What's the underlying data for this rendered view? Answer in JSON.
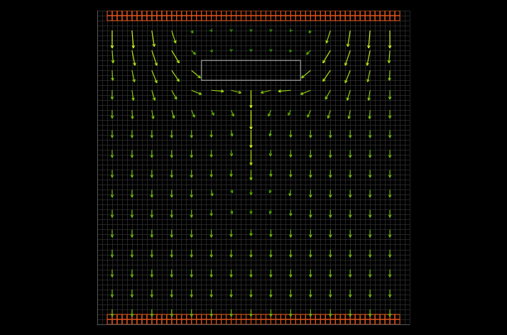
{
  "chart_data": {
    "type": "quiver",
    "tick_labels": false,
    "grid": true,
    "xlim": [
      0,
      63
    ],
    "ylim": [
      0,
      63
    ],
    "obstacle": {
      "x": [
        21,
        41
      ],
      "y": [
        49,
        53
      ]
    },
    "x": [
      3,
      7,
      11,
      15,
      19,
      23,
      27,
      31,
      35,
      39,
      43,
      47,
      51,
      55,
      59
    ],
    "y": [
      59,
      55,
      51,
      47,
      43,
      39,
      35,
      31,
      27,
      23,
      19,
      15,
      11,
      7,
      3
    ],
    "u": [
      [
        0,
        0.3,
        0.5,
        0.8,
        0.3,
        0.1,
        0,
        0,
        0,
        -0.1,
        -0.3,
        -0.8,
        -0.5,
        -0.3,
        0
      ],
      [
        0.2,
        0.6,
        1,
        1.5,
        0.8,
        0.2,
        0,
        0,
        0,
        -0.2,
        -0.8,
        -1.5,
        -1,
        -0.6,
        -0.2
      ],
      [
        0.1,
        0.5,
        1,
        1.5,
        1.8,
        null,
        null,
        null,
        null,
        null,
        -1.8,
        -1.5,
        -1,
        -0.5,
        -0.1
      ],
      [
        0,
        0.3,
        0.6,
        1,
        2,
        2.5,
        2,
        0,
        -2,
        -2.5,
        -2,
        -1,
        -0.6,
        -0.3,
        0
      ],
      [
        0,
        0.1,
        0.3,
        0.5,
        0.6,
        0.5,
        0.5,
        0,
        -0.5,
        -0.5,
        -0.6,
        -0.5,
        -0.3,
        -0.1,
        0
      ],
      [
        0,
        0,
        0,
        0,
        0,
        0,
        0.2,
        0,
        -0.2,
        0,
        0,
        0,
        0,
        0,
        0
      ],
      [
        0,
        0,
        0,
        0,
        0,
        0,
        0.1,
        0,
        -0.1,
        0,
        0,
        0,
        0,
        0,
        0
      ],
      [
        0,
        0,
        0,
        0,
        0,
        0,
        0,
        0,
        0,
        0,
        0,
        0,
        0,
        0,
        0
      ],
      [
        0,
        0,
        0,
        0,
        0,
        0.2,
        0.3,
        0,
        -0.3,
        -0.2,
        0,
        0,
        0,
        0,
        0
      ],
      [
        0,
        0,
        0,
        0,
        0,
        0,
        0.2,
        0,
        -0.2,
        0,
        0,
        0,
        0,
        0,
        0
      ],
      [
        0,
        0,
        0,
        0,
        0,
        0,
        0,
        0,
        0,
        0,
        0,
        0,
        0,
        0,
        0
      ],
      [
        0,
        0,
        0,
        0,
        0,
        0,
        0,
        0,
        0,
        0,
        0,
        0,
        0,
        0,
        0
      ],
      [
        0,
        0,
        0,
        0,
        0,
        0,
        0,
        0,
        0,
        0,
        0,
        0,
        0,
        0,
        0
      ],
      [
        0,
        0,
        0,
        0,
        0,
        0,
        0,
        0,
        0,
        0,
        0,
        0,
        0,
        0,
        0
      ],
      [
        0,
        0,
        0,
        0,
        0,
        0,
        0,
        0,
        0,
        0,
        0,
        0,
        0,
        0,
        0
      ]
    ],
    "v": [
      [
        -3.5,
        -3.5,
        -3.2,
        -2.5,
        -0.5,
        -0.2,
        -0.2,
        -0.2,
        -0.2,
        -0.2,
        -0.5,
        -2.5,
        -3.2,
        -3.5,
        -3.5
      ],
      [
        -2.5,
        -3,
        -3,
        -2.5,
        -0.8,
        -0.3,
        -0.2,
        -0.2,
        -0.2,
        -0.3,
        -0.8,
        -2.5,
        -3,
        -3,
        -2.5
      ],
      [
        -2,
        -2.3,
        -2.5,
        -2.2,
        -1.5,
        null,
        null,
        null,
        null,
        null,
        -1.5,
        -2.2,
        -2.5,
        -2.3,
        -2
      ],
      [
        -1.8,
        -2,
        -2,
        -1.8,
        -0.8,
        -0.2,
        -0.5,
        -3.5,
        -0.5,
        -0.2,
        -0.8,
        -1.8,
        -2,
        -2,
        -1.8
      ],
      [
        -1.6,
        -1.7,
        -1.7,
        -1.6,
        -1.4,
        -1,
        -1.2,
        -3.8,
        -1.2,
        -1,
        -1.4,
        -1.6,
        -1.7,
        -1.7,
        -1.6
      ],
      [
        -1.5,
        -1.5,
        -1.5,
        -1.5,
        -1.5,
        -1.4,
        -1.2,
        -3.5,
        -1.2,
        -1.4,
        -1.5,
        -1.5,
        -1.5,
        -1.5,
        -1.5
      ],
      [
        -1.5,
        -1.5,
        -1.5,
        -1.5,
        -1.5,
        -1.4,
        -1.2,
        -3,
        -1.2,
        -1.4,
        -1.5,
        -1.5,
        -1.5,
        -1.5,
        -1.5
      ],
      [
        -1.5,
        -1.5,
        -1.5,
        -1.5,
        -1.5,
        -1.4,
        -1.3,
        -2,
        -1.3,
        -1.4,
        -1.5,
        -1.5,
        -1.5,
        -1.5,
        -1.5
      ],
      [
        -1.5,
        -1.5,
        -1.5,
        -1.5,
        -1.5,
        -1.2,
        -0.6,
        -1,
        -0.6,
        -1.2,
        -1.5,
        -1.5,
        -1.5,
        -1.5,
        -1.5
      ],
      [
        -1.5,
        -1.5,
        -1.5,
        -1.5,
        -1.5,
        -1.2,
        -0.8,
        -0.8,
        -0.8,
        -1.2,
        -1.5,
        -1.5,
        -1.5,
        -1.5,
        -1.5
      ],
      [
        -1.5,
        -1.5,
        -1.5,
        -1.5,
        -1.5,
        -1.5,
        -1.4,
        -1.2,
        -1.4,
        -1.5,
        -1.5,
        -1.5,
        -1.5,
        -1.5,
        -1.5
      ],
      [
        -1.5,
        -1.5,
        -1.5,
        -1.5,
        -1.5,
        -1.5,
        -1.5,
        -1.5,
        -1.5,
        -1.5,
        -1.5,
        -1.5,
        -1.5,
        -1.5,
        -1.5
      ],
      [
        -1.5,
        -1.5,
        -1.5,
        -1.5,
        -1.5,
        -1.5,
        -1.5,
        -1.5,
        -1.5,
        -1.5,
        -1.5,
        -1.5,
        -1.5,
        -1.5,
        -1.5
      ],
      [
        -1.5,
        -1.5,
        -1.5,
        -1.5,
        -1.5,
        -1.5,
        -1.5,
        -1.5,
        -1.5,
        -1.5,
        -1.5,
        -1.5,
        -1.5,
        -1.5,
        -1.5
      ],
      [
        -1.4,
        -1.4,
        -1.4,
        -1.4,
        -1.4,
        -1.4,
        -1.4,
        -1.4,
        -1.4,
        -1.4,
        -1.4,
        -1.4,
        -1.4,
        -1.4,
        -1.4
      ]
    ]
  }
}
